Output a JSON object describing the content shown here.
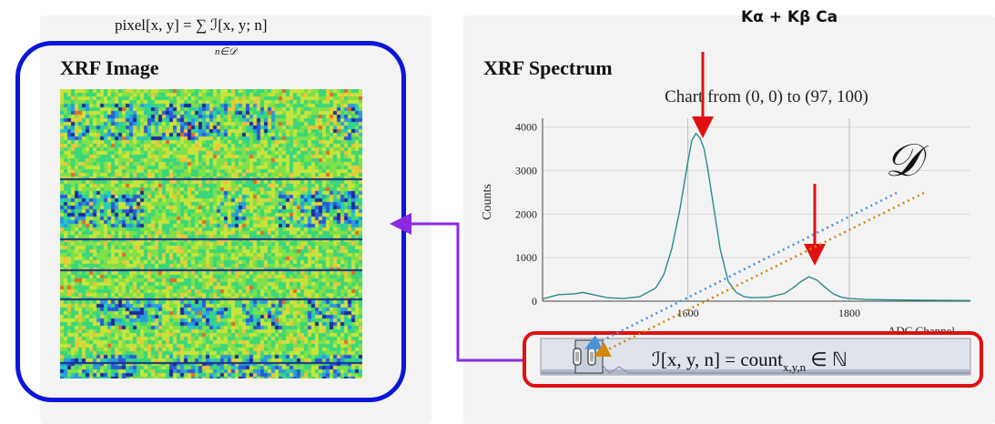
{
  "formulas": {
    "pixel_sum": "pixel[x, y] = ∑ ℐ[x, y; n]",
    "pixel_sum_subscript": "n∈𝒟",
    "count_main": "ℐ[x, y, n] = count",
    "count_subscript": "x,y,n",
    "count_tail": " ∈ ℕ"
  },
  "left_panel": {
    "title": "XRF Image"
  },
  "right_panel": {
    "title": "XRF Spectrum",
    "chart_title": "Chart from (0, 0) to (97, 100)"
  },
  "annotations": {
    "peak_label": "Kα + Kβ Ca",
    "domain_symbol": "𝒟"
  },
  "colors": {
    "image_box_border": "#0a16d8",
    "highlight_border": "#e01010",
    "peak_arrow": "#e01010",
    "connector_arrow": "#8a2be2",
    "spectrum_line": "#2a8a8a",
    "dotted_line_blue": "#4a90d9",
    "dotted_line_orange": "#d4870a"
  },
  "chart_data": {
    "type": "line",
    "title": "",
    "xlabel": "ADC Channel",
    "ylabel": "Counts",
    "xlim": [
      1420,
      1950
    ],
    "ylim": [
      0,
      4200
    ],
    "x_ticks": [
      1600,
      1800
    ],
    "y_ticks": [
      0,
      1000,
      2000,
      3000,
      4000
    ],
    "grid": true,
    "series": [
      {
        "x": [
          1420,
          1440,
          1460,
          1470,
          1480,
          1500,
          1520,
          1540,
          1560,
          1570,
          1580,
          1590,
          1600,
          1605,
          1610,
          1615,
          1620,
          1625,
          1630,
          1640,
          1650,
          1660,
          1670,
          1680,
          1700,
          1720,
          1730,
          1740,
          1750,
          1760,
          1770,
          1780,
          1790,
          1800,
          1820,
          1850,
          1880,
          1900,
          1950
        ],
        "y": [
          50,
          150,
          170,
          200,
          160,
          80,
          60,
          100,
          300,
          600,
          1200,
          2100,
          3200,
          3700,
          3850,
          3750,
          3500,
          3000,
          2400,
          1200,
          450,
          200,
          100,
          80,
          90,
          180,
          300,
          450,
          560,
          480,
          320,
          170,
          90,
          60,
          40,
          30,
          25,
          20,
          15
        ]
      }
    ]
  }
}
